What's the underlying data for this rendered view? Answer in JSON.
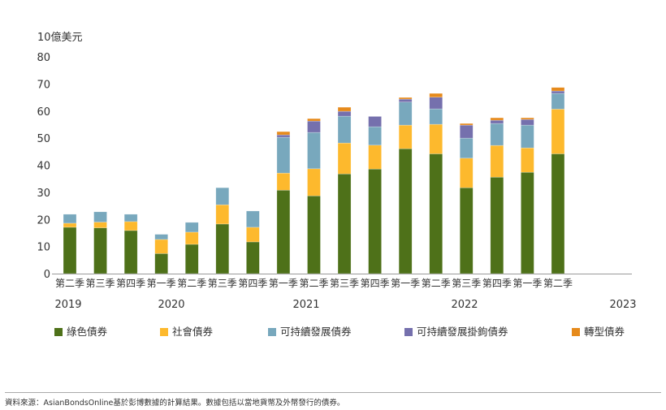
{
  "chart_data": {
    "type": "bar",
    "stacked": true,
    "ylabel": "10億美元",
    "ylim": [
      0,
      80
    ],
    "yticks": [
      0,
      10,
      20,
      30,
      40,
      50,
      60,
      70,
      80
    ],
    "grid": false,
    "legend_position": "bottom",
    "categories": [
      "第二季",
      "第三季",
      "第四季",
      "第一季",
      "第二季",
      "第三季",
      "第四季",
      "第一季",
      "第二季",
      "第三季",
      "第四季",
      "第一季",
      "第二季",
      "第三季",
      "第四季",
      "第一季",
      "第二季"
    ],
    "years": [
      {
        "label": "2019",
        "start": 0
      },
      {
        "label": "2020",
        "start": 3
      },
      {
        "label": "2021",
        "start": 7
      },
      {
        "label": "2022",
        "start": 11
      },
      {
        "label": "2023",
        "start": 15
      }
    ],
    "series": [
      {
        "name": "綠色債券",
        "color": "#4e7119",
        "values": [
          17.1,
          16.9,
          15.9,
          7.4,
          10.8,
          18.3,
          11.7,
          30.8,
          28.7,
          36.8,
          38.6,
          46.1,
          44.2,
          31.7,
          35.6,
          37.4,
          44.2
        ]
      },
      {
        "name": "社會債券",
        "color": "#fdb92d",
        "values": [
          1.5,
          2.1,
          3.3,
          5.2,
          4.5,
          7.1,
          5.4,
          6.3,
          10.0,
          11.4,
          8.8,
          8.7,
          10.9,
          10.9,
          11.7,
          9.0,
          16.5
        ]
      },
      {
        "name": "可持續發展債券",
        "color": "#78a8bd",
        "values": [
          3.3,
          3.8,
          2.7,
          1.9,
          3.6,
          6.3,
          6.0,
          13.2,
          13.4,
          9.9,
          6.8,
          8.5,
          5.7,
          7.4,
          8.1,
          8.4,
          5.8
        ]
      },
      {
        "name": "可持續發展掛鉤債券",
        "color": "#7570ad",
        "values": [
          0,
          0,
          0,
          0,
          0,
          0,
          0,
          0.9,
          4.2,
          1.8,
          3.8,
          1.1,
          4.3,
          4.8,
          1.2,
          2.1,
          0.9
        ]
      },
      {
        "name": "轉型債券",
        "color": "#e68a1b",
        "values": [
          0,
          0,
          0,
          0,
          0,
          0,
          0,
          1.2,
          0.9,
          1.5,
          0,
          0.6,
          1.4,
          0.6,
          0.9,
          0.6,
          1.3
        ]
      }
    ]
  },
  "footer": "資料來源：AsianBondsOnline基於彭博數據的計算結果。數據包括以當地貨幣及外幣發行的債券。"
}
